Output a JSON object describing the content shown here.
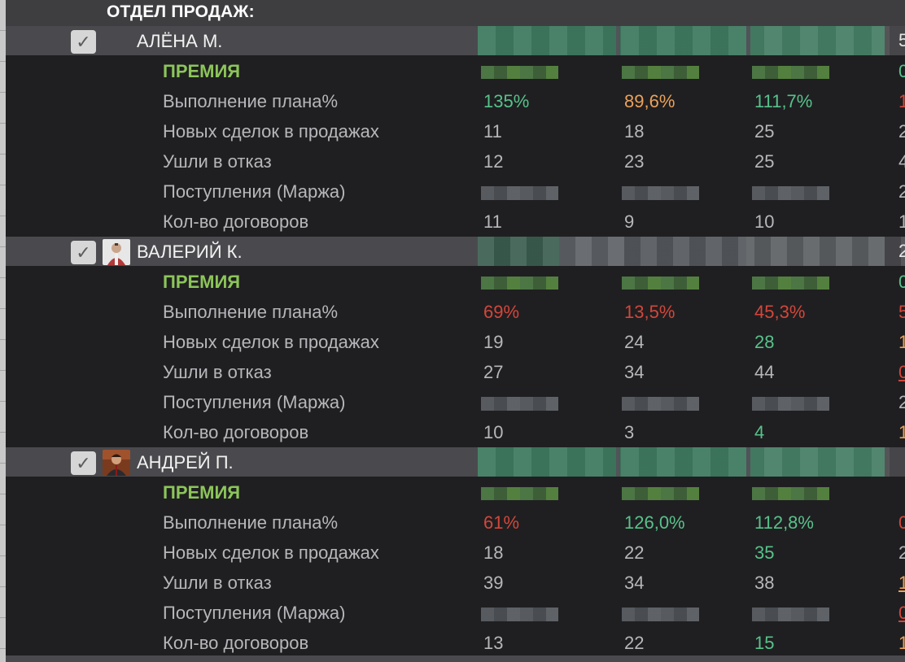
{
  "department_title": "ОТДЕЛ ПРОДАЖ:",
  "checkbox_glyph": "✓",
  "metric_labels": {
    "bonus": "ПРЕМИЯ",
    "plan": "Выполнение плана%",
    "new_deals": "Новых сделок в продажах",
    "refused": "Ушли в отказ",
    "revenue": "Поступления (Маржа)",
    "contracts": "Кол-во договоров"
  },
  "employees": [
    {
      "name": "АЛЁНА М.",
      "edge_char": "5",
      "plan": [
        "135%",
        "89,6%",
        "111,7%",
        "1"
      ],
      "new_deals": [
        "11",
        "18",
        "25",
        "2"
      ],
      "refused": [
        "12",
        "23",
        "25",
        "4"
      ],
      "revenue_edge": "2",
      "contracts": [
        "11",
        "9",
        "10",
        "1"
      ],
      "bonus_edge": "0"
    },
    {
      "name": "ВАЛЕРИЙ К.",
      "edge_char": "2",
      "plan": [
        "69%",
        "13,5%",
        "45,3%",
        "5"
      ],
      "new_deals": [
        "19",
        "24",
        "28",
        "1"
      ],
      "refused": [
        "27",
        "34",
        "44",
        "0"
      ],
      "revenue_edge": "2",
      "contracts": [
        "10",
        "3",
        "4",
        "1"
      ],
      "bonus_edge": "0"
    },
    {
      "name": "АНДРЕЙ П.",
      "edge_char": "",
      "plan": [
        "61%",
        "126,0%",
        "112,8%",
        "0"
      ],
      "new_deals": [
        "18",
        "22",
        "35",
        "2"
      ],
      "refused": [
        "39",
        "34",
        "38",
        "1"
      ],
      "revenue_edge": "0",
      "contracts": [
        "13",
        "22",
        "15",
        "1"
      ],
      "bonus_edge": ""
    }
  ],
  "colors": {
    "green": "#58c28b",
    "orange": "#eba15a",
    "red": "#d4463a",
    "bonus_label": "#8cc55a"
  }
}
